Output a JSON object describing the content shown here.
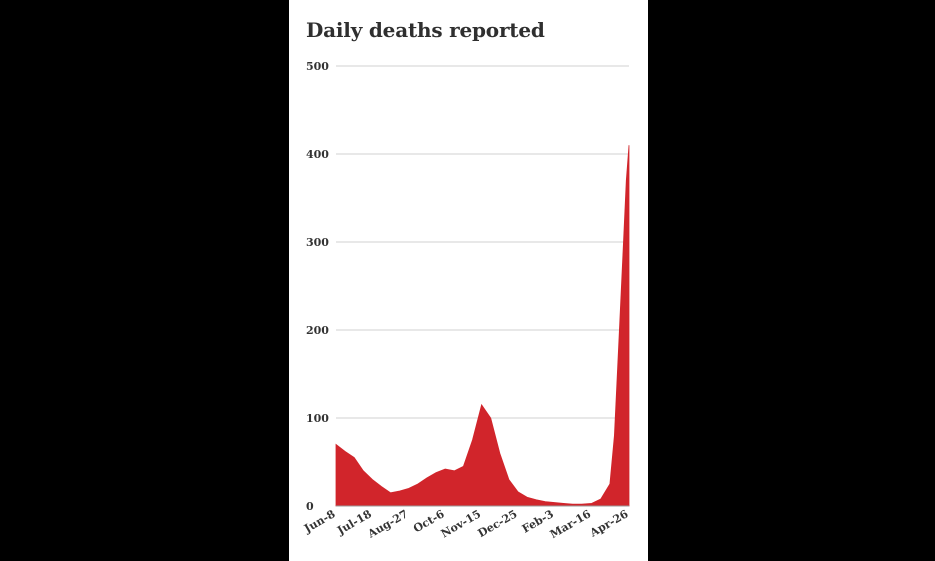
{
  "chart_data": {
    "type": "area",
    "title": "Daily deaths reported",
    "xlabel": "",
    "ylabel": "",
    "ylim": [
      0,
      500
    ],
    "yticks": [
      0,
      100,
      200,
      300,
      400,
      500
    ],
    "grid": true,
    "color": "#d1252b",
    "x_tick_labels": [
      "Jun-8",
      "Jul-18",
      "Aug-27",
      "Oct-6",
      "Nov-15",
      "Dec-25",
      "Feb-3",
      "Mar-16",
      "Apr-26"
    ],
    "x_start": "Jun-8",
    "x_end": "Apr-26",
    "series": [
      {
        "x": [
          "Jun-8",
          "Jun-18",
          "Jun-28",
          "Jul-8",
          "Jul-18",
          "Jul-28",
          "Aug-7",
          "Aug-17",
          "Aug-27",
          "Sep-6",
          "Sep-16",
          "Sep-26",
          "Oct-6",
          "Oct-16",
          "Oct-26",
          "Nov-5",
          "Nov-15",
          "Nov-25",
          "Dec-5",
          "Dec-15",
          "Dec-25",
          "Jan-4",
          "Jan-14",
          "Jan-24",
          "Feb-3",
          "Feb-13",
          "Feb-23",
          "Mar-5",
          "Mar-16",
          "Mar-26",
          "Apr-5",
          "Apr-10",
          "Apr-15",
          "Apr-20",
          "Apr-23",
          "Apr-26"
        ],
        "values": [
          70,
          62,
          55,
          40,
          30,
          22,
          15,
          17,
          20,
          25,
          32,
          38,
          42,
          40,
          45,
          75,
          115,
          100,
          60,
          30,
          16,
          10,
          7,
          5,
          4,
          3,
          2,
          2,
          3,
          8,
          25,
          80,
          190,
          300,
          370,
          410
        ]
      }
    ]
  }
}
